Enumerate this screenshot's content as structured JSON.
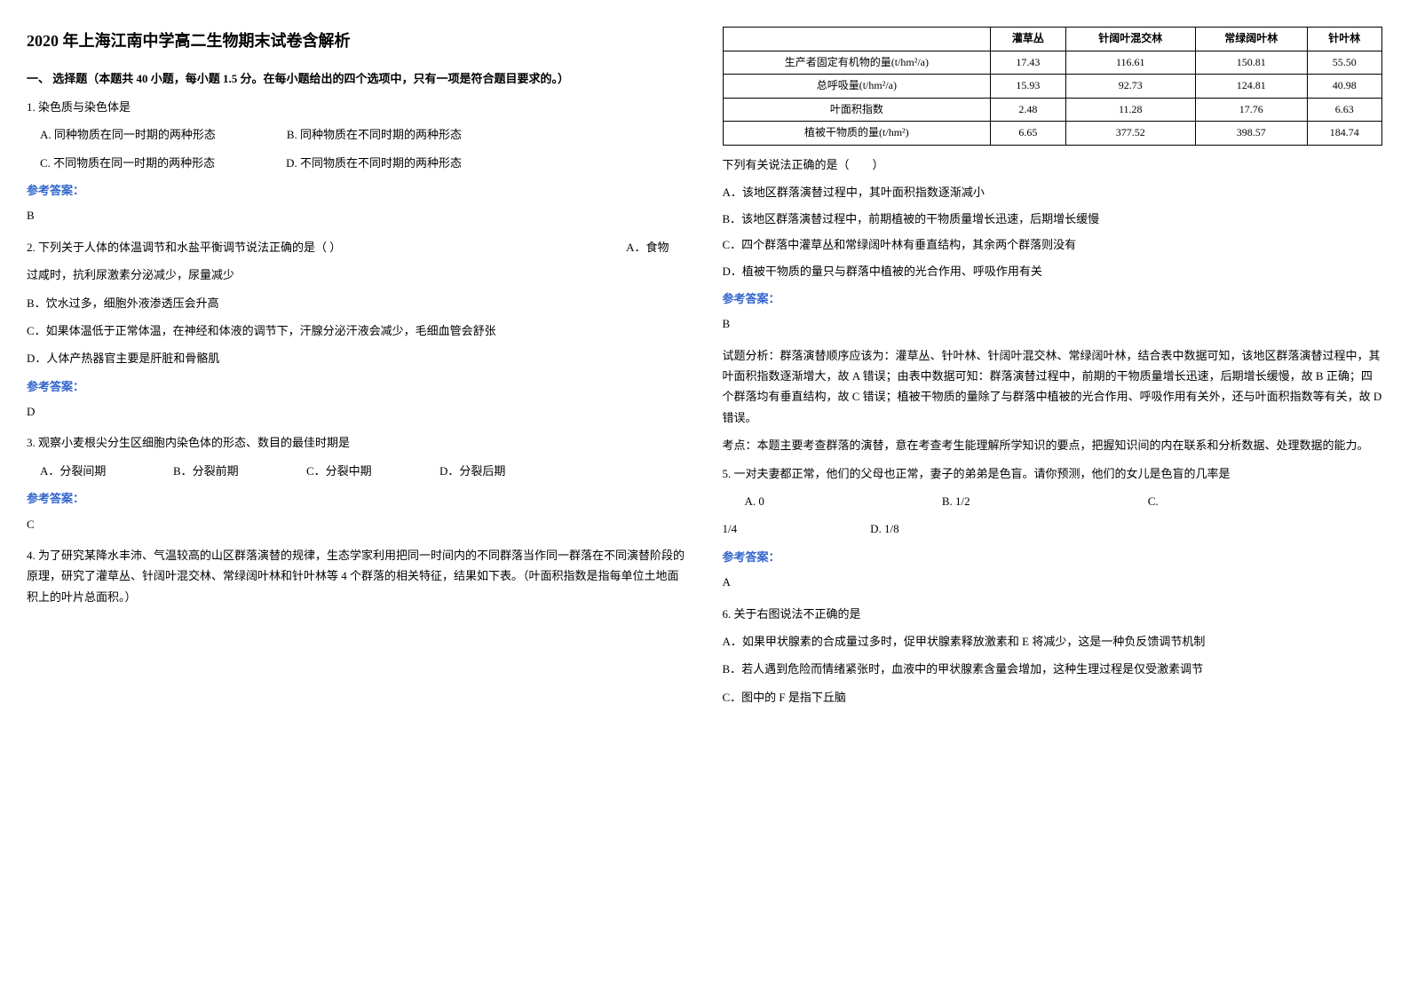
{
  "title": "2020 年上海江南中学高二生物期末试卷含解析",
  "section1_header": "一、 选择题（本题共 40 小题，每小题 1.5 分。在每小题给出的四个选项中，只有一项是符合题目要求的。）",
  "q1": {
    "text": "1. 染色质与染色体是",
    "optA": "A.  同种物质在同一时期的两种形态",
    "optB": "B.  同种物质在不同时期的两种形态",
    "optC": "C.  不同物质在同一时期的两种形态",
    "optD": "D.  不同物质在不同时期的两种形态",
    "answer": "B"
  },
  "answer_label": "参考答案：",
  "q2": {
    "text": "2. 下列关于人体的体温调节和水盐平衡调节说法正确的是（  ）",
    "optA_suffix": "A．食物",
    "optA_line2": "过咸时，抗利尿激素分泌减少，尿量减少",
    "optB": "B．饮水过多，细胞外液渗透压会升高",
    "optC": "C．如果体温低于正常体温，在神经和体液的调节下，汗腺分泌汗液会减少，毛细血管会舒张",
    "optD": "D．人体产热器官主要是肝脏和骨骼肌",
    "answer": "D"
  },
  "q3": {
    "text": "3. 观察小麦根尖分生区细胞内染色体的形态、数目的最佳时期是",
    "optA": "A．分裂间期",
    "optB": "B．分裂前期",
    "optC": "C．分裂中期",
    "optD": "D．分裂后期",
    "answer": "C"
  },
  "q4": {
    "text": "4. 为了研究某降水丰沛、气温较高的山区群落演替的规律，生态学家利用把同一时间内的不同群落当作同一群落在不同演替阶段的原理，研究了灌草丛、针阔叶混交林、常绿阔叶林和针叶林等 4 个群落的相关特征，结果如下表。（叶面积指数是指每单位土地面积上的叶片总面积。）",
    "statement": "下列有关说法正确的是（　　）",
    "optA": "A．该地区群落演替过程中，其叶面积指数逐渐减小",
    "optB": "B．该地区群落演替过程中，前期植被的干物质量增长迅速，后期增长缓慢",
    "optC": "C．四个群落中灌草丛和常绿阔叶林有垂直结构，其余两个群落则没有",
    "optD": "D．植被干物质的量只与群落中植被的光合作用、呼吸作用有关",
    "answer": "B",
    "analysis1": "试题分析：群落演替顺序应该为：灌草丛、针叶林、针阔叶混交林、常绿阔叶林，结合表中数据可知，该地区群落演替过程中，其叶面积指数逐渐增大，故 A 错误；由表中数据可知：群落演替过程中，前期的干物质量增长迅速，后期增长缓慢，故 B 正确；四个群落均有垂直结构，故 C 错误；植被干物质的量除了与群落中植被的光合作用、呼吸作用有关外，还与叶面积指数等有关，故 D 错误。",
    "analysis2": "考点：本题主要考查群落的演替，意在考查考生能理解所学知识的要点，把握知识间的内在联系和分析数据、处理数据的能力。"
  },
  "table": {
    "headers": [
      "",
      "灌草丛",
      "针阔叶混交林",
      "常绿阔叶林",
      "针叶林"
    ],
    "rows": [
      [
        "生产者固定有机物的量(t/hm²/a)",
        "17.43",
        "116.61",
        "150.81",
        "55.50"
      ],
      [
        "总呼吸量(t/hm²/a)",
        "15.93",
        "92.73",
        "124.81",
        "40.98"
      ],
      [
        "叶面积指数",
        "2.48",
        "11.28",
        "17.76",
        "6.63"
      ],
      [
        "植被干物质的量(t/hm²)",
        "6.65",
        "377.52",
        "398.57",
        "184.74"
      ]
    ]
  },
  "q5": {
    "text": "5. 一对夫妻都正常，他们的父母也正常，妻子的弟弟是色盲。请你预测，他们的女儿是色盲的几率是",
    "optA": "A.  0",
    "optB": "B.  1/2",
    "optC": "C.  ",
    "optC2": "1/4",
    "optD": "D.  1/8",
    "answer": "A"
  },
  "q6": {
    "text": "6. 关于右图说法不正确的是",
    "optA": "A．如果甲状腺素的合成量过多时，促甲状腺素释放激素和 E 将减少，这是一种负反馈调节机制",
    "optB": "B．若人遇到危险而情绪紧张时，血液中的甲状腺素含量会增加，这种生理过程是仅受激素调节",
    "optC": "C．图中的 F 是指下丘脑"
  },
  "colors": {
    "answer_label_color": "#3366cc",
    "text_color": "#000000",
    "background_color": "#ffffff",
    "table_border_color": "#000000"
  }
}
